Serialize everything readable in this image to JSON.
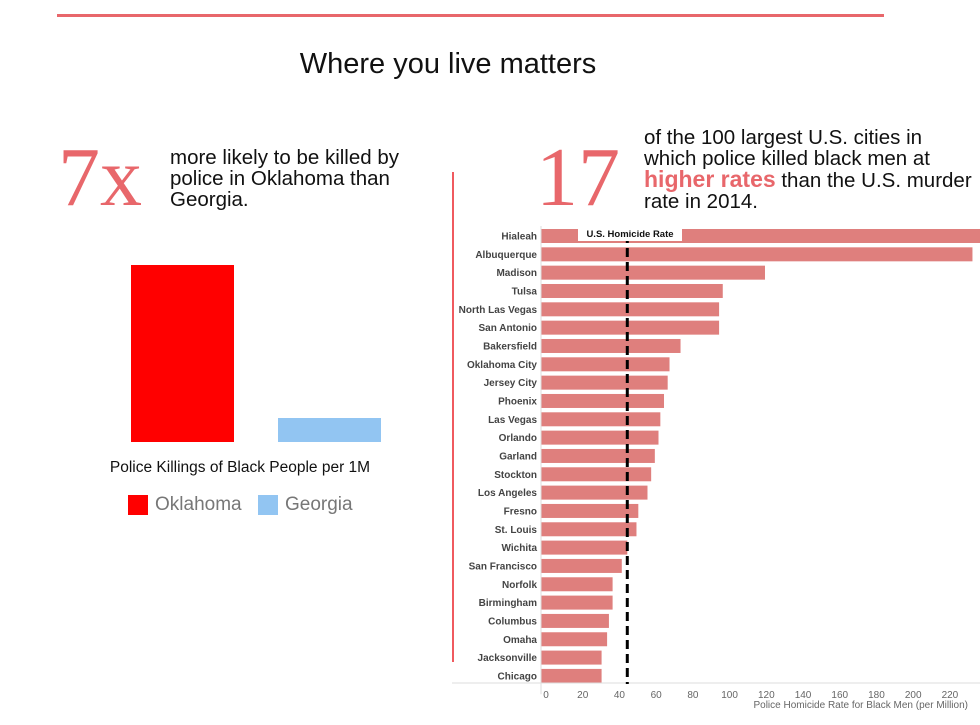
{
  "title": "Where you live matters",
  "left": {
    "big_number": "7x",
    "blurb": "more likely to be killed by police in Oklahoma than Georgia.",
    "caption": "Police Killings of Black People per 1M",
    "legend": [
      {
        "label": "Oklahoma",
        "color": "#ff0000"
      },
      {
        "label": "Georgia",
        "color": "#92c5f2"
      }
    ]
  },
  "right": {
    "big_number": "17",
    "blurb_1": "of the 100 largest U.S. cities in which police killed black men at",
    "highlight": "higher rates",
    "blurb_2": "than the U.S. murder rate in 2014."
  },
  "colors": {
    "accent": "#e8676b",
    "bar": "#df7f7d"
  },
  "chart_data": [
    {
      "type": "bar",
      "title": "Police Killings of Black People per 1M",
      "categories": [
        "Oklahoma",
        "Georgia"
      ],
      "values": [
        7,
        1
      ]
    },
    {
      "type": "bar",
      "orientation": "horizontal",
      "xlabel": "Police Homicide Rate for Black Men (per Million)",
      "xlim": [
        0,
        230
      ],
      "xticks": [
        0,
        20,
        40,
        60,
        80,
        100,
        120,
        140,
        160,
        180,
        200,
        220
      ],
      "reference_line": {
        "label": "U.S. Homicide Rate",
        "value": 47
      },
      "categories": [
        "Hialeah",
        "Albuquerque",
        "Madison",
        "Tulsa",
        "North Las Vegas",
        "San Antonio",
        "Bakersfield",
        "Oklahoma City",
        "Jersey City",
        "Phoenix",
        "Las Vegas",
        "Orlando",
        "Garland",
        "Stockton",
        "Los Angeles",
        "Fresno",
        "St. Louis",
        "Wichita",
        "San Francisco",
        "Norfolk",
        "Birmingham",
        "Columbus",
        "Omaha",
        "Jacksonville",
        "Chicago"
      ],
      "values": [
        240,
        235,
        122,
        99,
        97,
        97,
        76,
        70,
        69,
        67,
        65,
        64,
        62,
        60,
        58,
        53,
        52,
        47,
        44,
        39,
        39,
        37,
        36,
        33,
        33
      ]
    }
  ]
}
